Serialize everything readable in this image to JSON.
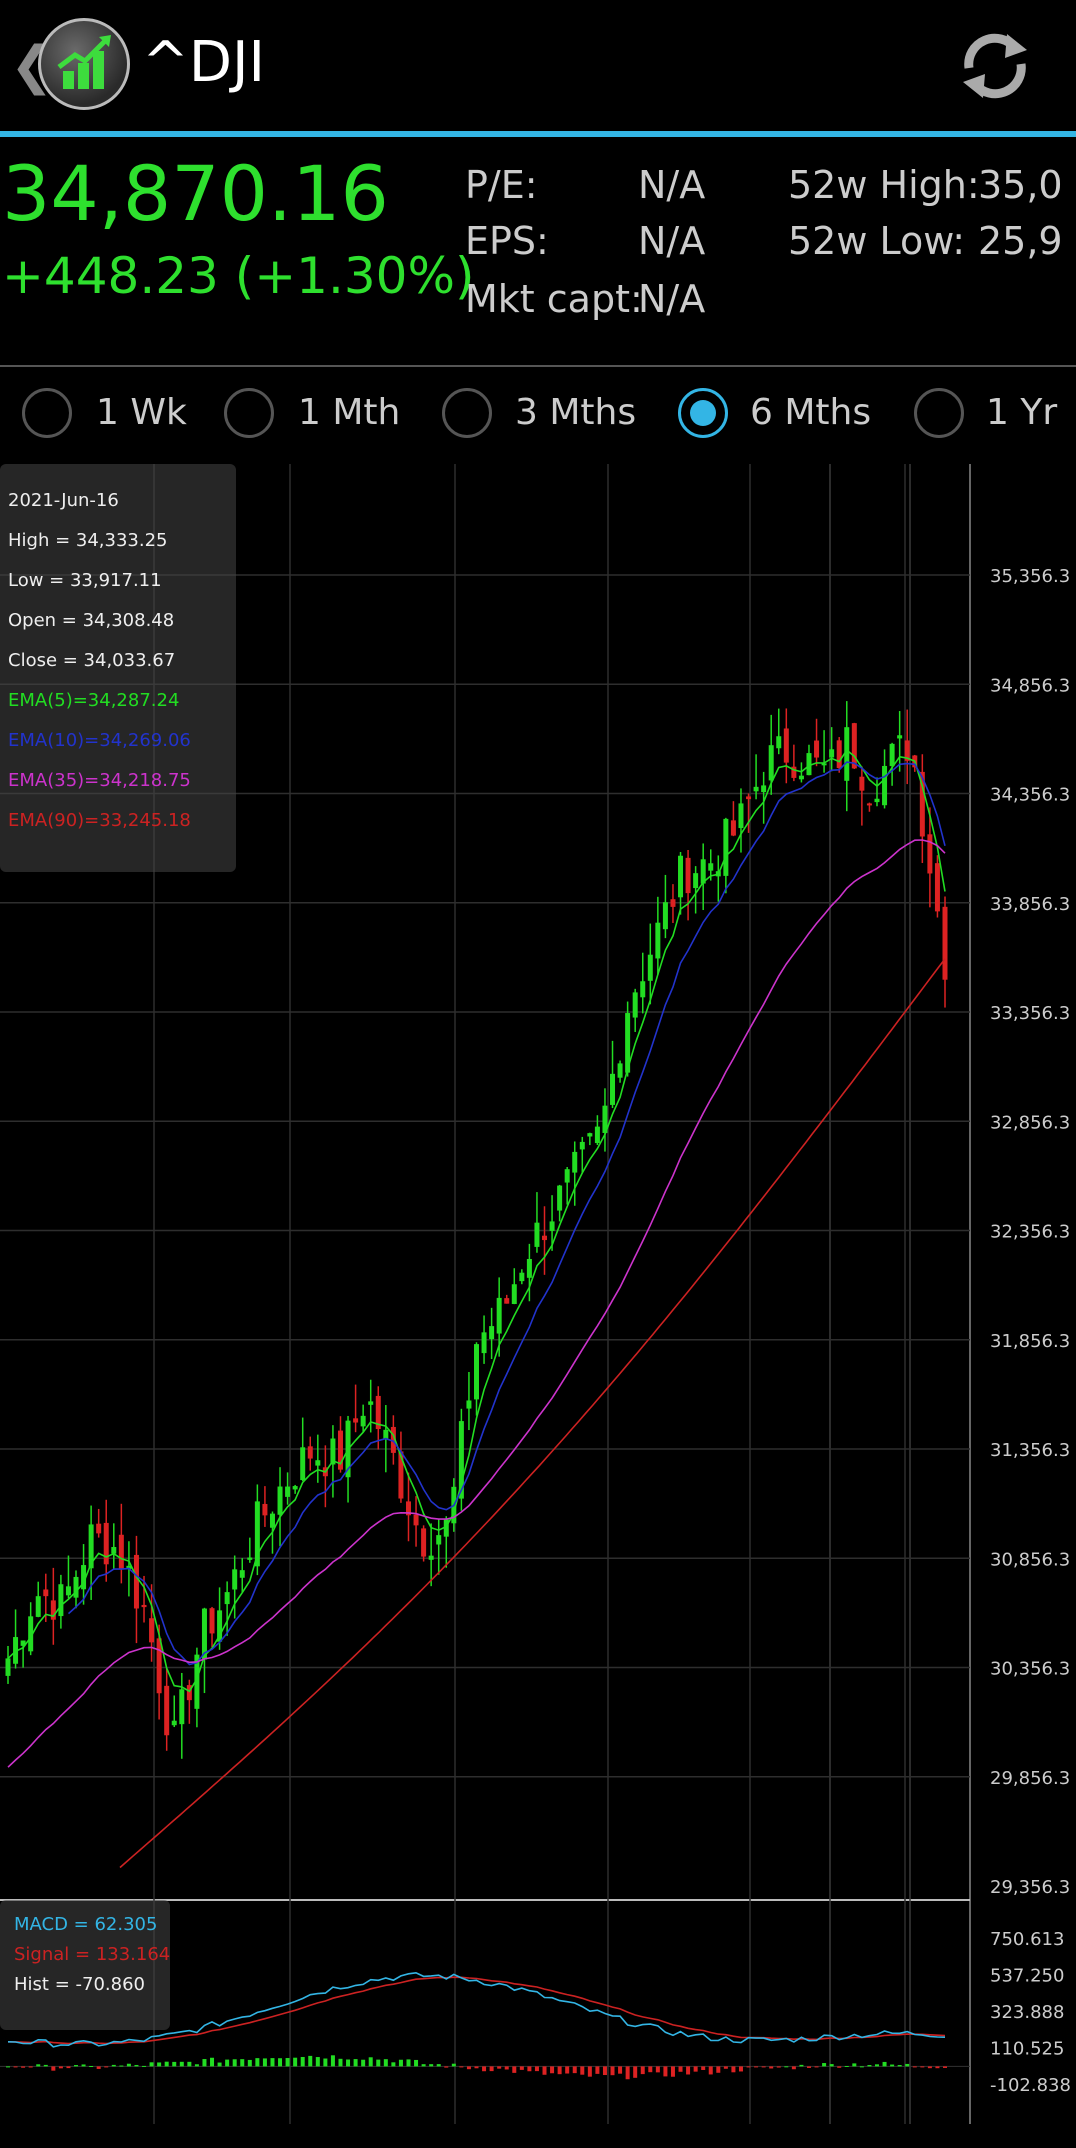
{
  "app": {
    "title": "^DJI",
    "back_icon": "chevron-left-icon",
    "refresh_icon": "refresh-icon"
  },
  "quote": {
    "price": "34,870.16",
    "change": "+448.23 (+1.30%)",
    "stats": {
      "pe_label": "P/E:",
      "pe_value": "N/A",
      "eps_label": "EPS:",
      "eps_value": "N/A",
      "mktcap_label": "Mkt capt:",
      "mktcap_value": "N/A",
      "high52_label": "52w High:",
      "high52_value": "35,0",
      "low52_label": "52w Low:",
      "low52_value": "25,9"
    }
  },
  "ranges": [
    {
      "label": "1 Wk",
      "selected": false
    },
    {
      "label": "1 Mth",
      "selected": false
    },
    {
      "label": "3 Mths",
      "selected": false
    },
    {
      "label": "6 Mths",
      "selected": true
    },
    {
      "label": "1 Yr",
      "selected": false
    }
  ],
  "info": {
    "date": "2021-Jun-16",
    "high": "High = 34,333.25",
    "low": "Low = 33,917.11",
    "open": "Open = 34,308.48",
    "close": "Close = 34,033.67",
    "ema5": "EMA(5)=34,287.24",
    "ema10": "EMA(10)=34,269.06",
    "ema35": "EMA(35)=34,218.75",
    "ema90": "EMA(90)=33,245.18"
  },
  "macd_info": {
    "macd": "MACD = 62.305",
    "signal": "Signal = 133.164",
    "hist": "Hist = -70.860"
  },
  "colors": {
    "up": "#22dd22",
    "down": "#dd2222",
    "ema5": "#22dd22",
    "ema10": "#2233cc",
    "ema35": "#cc33cc",
    "ema90": "#cc2222",
    "macd": "#33b5e5",
    "signal": "#cc2222",
    "accent": "#33b5e5"
  },
  "chart_data": [
    {
      "type": "candlestick",
      "y_tick_labels": [
        "35,356.3",
        "34,856.3",
        "34,356.3",
        "33,856.3",
        "33,356.3",
        "32,856.3",
        "32,356.3",
        "31,856.3",
        "31,356.3",
        "30,856.3",
        "30,356.3",
        "29,856.3",
        "29,356.3"
      ],
      "y_ticks": [
        35356.3,
        34856.3,
        34356.3,
        33856.3,
        33356.3,
        32856.3,
        32356.3,
        31856.3,
        31356.3,
        30856.3,
        30356.3,
        29856.3,
        29356.3
      ],
      "ylim": [
        29356.3,
        35600
      ],
      "n_candles": 125,
      "close_path": [
        [
          0,
          30400
        ],
        [
          4,
          30700
        ],
        [
          8,
          30650
        ],
        [
          12,
          30950
        ],
        [
          16,
          30900
        ],
        [
          20,
          30600
        ],
        [
          24,
          30000
        ],
        [
          28,
          30500
        ],
        [
          32,
          30700
        ],
        [
          36,
          31000
        ],
        [
          40,
          31200
        ],
        [
          44,
          31350
        ],
        [
          48,
          31300
        ],
        [
          52,
          31600
        ],
        [
          56,
          31300
        ],
        [
          60,
          30950
        ],
        [
          64,
          31000
        ],
        [
          68,
          31850
        ],
        [
          72,
          32000
        ],
        [
          75,
          32250
        ],
        [
          78,
          32400
        ],
        [
          82,
          32600
        ],
        [
          86,
          32800
        ],
        [
          90,
          33400
        ],
        [
          94,
          33700
        ],
        [
          98,
          34000
        ],
        [
          102,
          34050
        ],
        [
          106,
          34200
        ],
        [
          110,
          34500
        ],
        [
          113,
          34550
        ],
        [
          116,
          34500
        ],
        [
          119,
          34450
        ],
        [
          122,
          34600
        ],
        [
          125,
          34400
        ],
        [
          128,
          34500
        ],
        [
          131,
          34600
        ],
        [
          134,
          34000
        ],
        [
          136,
          33600
        ]
      ],
      "ema90_range": [
        29356.3,
        33600
      ],
      "macd": {
        "y_tick_labels": [
          "750.613",
          "537.250",
          "323.888",
          "110.525",
          "-102.838"
        ],
        "y_ticks": [
          750.613,
          537.25,
          323.888,
          110.525,
          -102.838
        ]
      }
    }
  ]
}
